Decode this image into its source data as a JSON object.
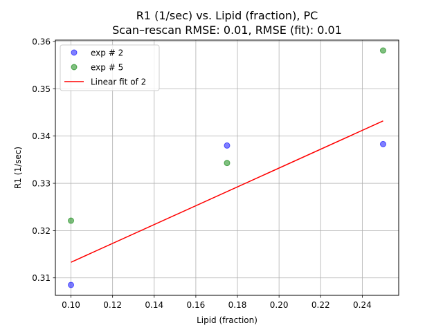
{
  "chart_data": {
    "type": "scatter",
    "title": "R1 (1/sec) vs. Lipid (fraction), PC",
    "subtitle": "Scan–rescan RMSE: 0.01, RMSE (fit): 0.01",
    "xlabel": "Lipid (fraction)",
    "ylabel": "R1 (1/sec)",
    "xlim": [
      0.0925,
      0.2575
    ],
    "ylim": [
      0.3063,
      0.3603
    ],
    "xticks": [
      0.1,
      0.12,
      0.14,
      0.16,
      0.18,
      0.2,
      0.22,
      0.24
    ],
    "xtick_labels": [
      "0.10",
      "0.12",
      "0.14",
      "0.16",
      "0.18",
      "0.20",
      "0.22",
      "0.24"
    ],
    "yticks": [
      0.31,
      0.32,
      0.33,
      0.34,
      0.35,
      0.36
    ],
    "ytick_labels": [
      "0.31",
      "0.32",
      "0.33",
      "0.34",
      "0.35",
      "0.36"
    ],
    "grid": true,
    "legend_position": "top-left",
    "series": [
      {
        "name": "exp # 2",
        "kind": "scatter",
        "color": "#0000ff",
        "x": [
          0.1,
          0.175,
          0.25
        ],
        "y": [
          0.3085,
          0.338,
          0.3383
        ]
      },
      {
        "name": "exp # 5",
        "kind": "scatter",
        "color": "#008000",
        "x": [
          0.1,
          0.175,
          0.25
        ],
        "y": [
          0.3221,
          0.3343,
          0.3581
        ]
      },
      {
        "name": "Linear fit of 2",
        "kind": "line",
        "color": "#ff0000",
        "x": [
          0.1,
          0.25
        ],
        "y": [
          0.3133,
          0.3432
        ]
      }
    ]
  }
}
